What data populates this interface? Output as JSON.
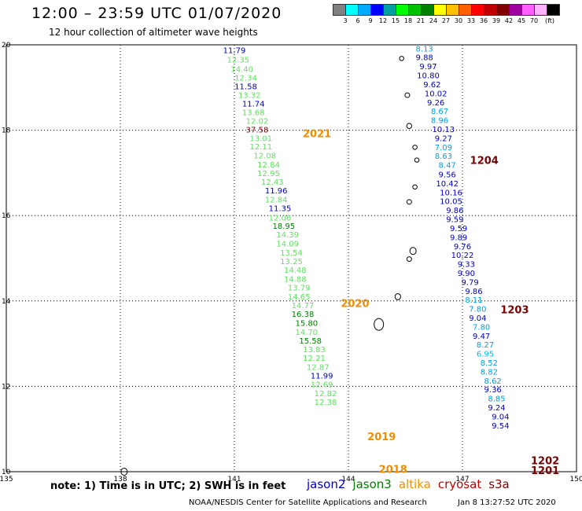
{
  "header": {
    "title": "12:00 – 23:59 UTC 01/07/2020",
    "subtitle": "12 hour collection of altimeter wave heights"
  },
  "colorbar": {
    "colors": [
      "#808080",
      "#00ffff",
      "#00aaff",
      "#0000ff",
      "#00a0a0",
      "#00ff00",
      "#00c000",
      "#008000",
      "#ffff00",
      "#ffc000",
      "#ff6000",
      "#ff0000",
      "#c00000",
      "#800000",
      "#a000a0",
      "#ff60ff",
      "#ffb0ff",
      "#000000"
    ],
    "labels": [
      "3",
      "6",
      "9",
      "12",
      "15",
      "18",
      "21",
      "24",
      "27",
      "30",
      "33",
      "36",
      "39",
      "42",
      "45",
      "70",
      "(ft)"
    ]
  },
  "map": {
    "lon_ticks": [
      "135",
      "138",
      "141",
      "144",
      "147",
      "150"
    ],
    "lat_ticks": [
      "20",
      "18",
      "16",
      "14",
      "12",
      "10"
    ],
    "year_labels": [
      {
        "text": "2021",
        "lon": 142.8,
        "lat": 17.93
      },
      {
        "text": "2020",
        "lon": 143.8,
        "lat": 13.95
      },
      {
        "text": "2019",
        "lon": 144.5,
        "lat": 10.83
      },
      {
        "text": "2018",
        "lon": 144.8,
        "lat": 10.06
      }
    ],
    "buoy_labels": [
      {
        "text": "1204",
        "lon": 147.2,
        "lat": 17.3
      },
      {
        "text": "1203",
        "lon": 148.0,
        "lat": 13.8
      },
      {
        "text": "1202",
        "lon": 148.8,
        "lat": 10.27
      },
      {
        "text": "1201",
        "lon": 148.8,
        "lat": 10.04
      }
    ]
  },
  "tracks": {
    "colors": {
      "jason2": "#0000c0",
      "jason3": "#008000",
      "altika": "#f09000",
      "cryosat": "#c00000",
      "s3a": "#800000",
      "lt15": "#60e060",
      "lt12": "#00a0e0",
      "lt9": "#00bbee"
    },
    "west": [
      {
        "v": "11.79",
        "lon": 141.0,
        "lat": 19.88,
        "c": "jason2"
      },
      {
        "v": "12.35",
        "lon": 141.1,
        "lat": 19.66,
        "c": "lt15"
      },
      {
        "v": "14.40",
        "lon": 141.2,
        "lat": 19.44,
        "c": "lt15"
      },
      {
        "v": "12.34",
        "lon": 141.3,
        "lat": 19.24,
        "c": "lt15"
      },
      {
        "v": "11.58",
        "lon": 141.3,
        "lat": 19.03,
        "c": "jason2"
      },
      {
        "v": "13.32",
        "lon": 141.4,
        "lat": 18.83,
        "c": "lt15"
      },
      {
        "v": "11.74",
        "lon": 141.5,
        "lat": 18.63,
        "c": "jason2"
      },
      {
        "v": "13.68",
        "lon": 141.5,
        "lat": 18.43,
        "c": "lt15"
      },
      {
        "v": "12.02",
        "lon": 141.6,
        "lat": 18.22,
        "c": "lt15"
      },
      {
        "v": "37.58",
        "lon": 141.6,
        "lat": 18.02,
        "c": "s3a"
      },
      {
        "v": "13.01",
        "lon": 141.7,
        "lat": 17.82,
        "c": "lt15"
      },
      {
        "v": "12.11",
        "lon": 141.7,
        "lat": 17.62,
        "c": "lt15"
      },
      {
        "v": "12.08",
        "lon": 141.8,
        "lat": 17.41,
        "c": "lt15"
      },
      {
        "v": "12.84",
        "lon": 141.9,
        "lat": 17.2,
        "c": "lt15"
      },
      {
        "v": "12.95",
        "lon": 141.9,
        "lat": 17.0,
        "c": "lt15"
      },
      {
        "v": "12.43",
        "lon": 142.0,
        "lat": 16.8,
        "c": "lt15"
      },
      {
        "v": "11.96",
        "lon": 142.1,
        "lat": 16.59,
        "c": "jason2"
      },
      {
        "v": "12.84",
        "lon": 142.1,
        "lat": 16.38,
        "c": "lt15"
      },
      {
        "v": "11.35",
        "lon": 142.2,
        "lat": 16.18,
        "c": "jason2"
      },
      {
        "v": "12.06",
        "lon": 142.2,
        "lat": 15.96,
        "c": "lt15"
      },
      {
        "v": "18.95",
        "lon": 142.3,
        "lat": 15.76,
        "c": "jason3"
      },
      {
        "v": "14.39",
        "lon": 142.4,
        "lat": 15.56,
        "c": "lt15"
      },
      {
        "v": "14.09",
        "lon": 142.4,
        "lat": 15.35,
        "c": "lt15"
      },
      {
        "v": "13.54",
        "lon": 142.5,
        "lat": 15.14,
        "c": "lt15"
      },
      {
        "v": "13.25",
        "lon": 142.5,
        "lat": 14.94,
        "c": "lt15"
      },
      {
        "v": "14.48",
        "lon": 142.6,
        "lat": 14.73,
        "c": "lt15"
      },
      {
        "v": "14.88",
        "lon": 142.6,
        "lat": 14.52,
        "c": "lt15"
      },
      {
        "v": "13.79",
        "lon": 142.7,
        "lat": 14.32,
        "c": "lt15"
      },
      {
        "v": "14.65",
        "lon": 142.7,
        "lat": 14.11,
        "c": "lt15"
      },
      {
        "v": "14.77",
        "lon": 142.8,
        "lat": 13.9,
        "c": "lt15"
      },
      {
        "v": "16.38",
        "lon": 142.8,
        "lat": 13.7,
        "c": "jason3"
      },
      {
        "v": "15.80",
        "lon": 142.9,
        "lat": 13.49,
        "c": "jason3"
      },
      {
        "v": "14.70",
        "lon": 142.9,
        "lat": 13.28,
        "c": "lt15"
      },
      {
        "v": "15.58",
        "lon": 143.0,
        "lat": 13.08,
        "c": "jason3"
      },
      {
        "v": "13.83",
        "lon": 143.1,
        "lat": 12.87,
        "c": "lt15"
      },
      {
        "v": "12.21",
        "lon": 143.1,
        "lat": 12.67,
        "c": "lt15"
      },
      {
        "v": "12.87",
        "lon": 143.2,
        "lat": 12.46,
        "c": "lt15"
      },
      {
        "v": "11.99",
        "lon": 143.3,
        "lat": 12.26,
        "c": "jason2"
      },
      {
        "v": "12.69",
        "lon": 143.3,
        "lat": 12.05,
        "c": "lt15"
      },
      {
        "v": "12.82",
        "lon": 143.4,
        "lat": 11.84,
        "c": "lt15"
      },
      {
        "v": "12.38",
        "lon": 143.4,
        "lat": 11.64,
        "c": "lt15"
      }
    ],
    "east": [
      {
        "v": "8.13",
        "lon": 146.0,
        "lat": 19.92,
        "c": "lt12"
      },
      {
        "v": "9.88",
        "lon": 146.0,
        "lat": 19.71,
        "c": "jason2"
      },
      {
        "v": "9.97",
        "lon": 146.1,
        "lat": 19.5,
        "c": "jason2"
      },
      {
        "v": "10.80",
        "lon": 146.1,
        "lat": 19.29,
        "c": "jason2"
      },
      {
        "v": "9.62",
        "lon": 146.2,
        "lat": 19.08,
        "c": "jason2"
      },
      {
        "v": "10.02",
        "lon": 146.3,
        "lat": 18.87,
        "c": "jason2"
      },
      {
        "v": "9.26",
        "lon": 146.3,
        "lat": 18.66,
        "c": "jason2"
      },
      {
        "v": "8.67",
        "lon": 146.4,
        "lat": 18.45,
        "c": "lt12"
      },
      {
        "v": "8.96",
        "lon": 146.4,
        "lat": 18.24,
        "c": "lt12"
      },
      {
        "v": "10.13",
        "lon": 146.5,
        "lat": 18.03,
        "c": "jason2"
      },
      {
        "v": "9.27",
        "lon": 146.5,
        "lat": 17.82,
        "c": "jason2"
      },
      {
        "v": "7.09",
        "lon": 146.5,
        "lat": 17.61,
        "c": "lt12"
      },
      {
        "v": "8.63",
        "lon": 146.5,
        "lat": 17.4,
        "c": "lt12"
      },
      {
        "v": "8.47",
        "lon": 146.6,
        "lat": 17.19,
        "c": "lt12"
      },
      {
        "v": "9.56",
        "lon": 146.6,
        "lat": 16.97,
        "c": "jason2"
      },
      {
        "v": "10.42",
        "lon": 146.6,
        "lat": 16.76,
        "c": "jason2"
      },
      {
        "v": "10.16",
        "lon": 146.7,
        "lat": 16.55,
        "c": "jason2"
      },
      {
        "v": "10.05",
        "lon": 146.7,
        "lat": 16.34,
        "c": "jason2"
      },
      {
        "v": "9.86",
        "lon": 146.8,
        "lat": 16.13,
        "c": "jason2"
      },
      {
        "v": "9.59",
        "lon": 146.8,
        "lat": 15.92,
        "c": "jason2"
      },
      {
        "v": "9.59",
        "lon": 146.9,
        "lat": 15.71,
        "c": "jason2"
      },
      {
        "v": "9.89",
        "lon": 146.9,
        "lat": 15.5,
        "c": "jason2"
      },
      {
        "v": "9.76",
        "lon": 147.0,
        "lat": 15.29,
        "c": "jason2"
      },
      {
        "v": "10.22",
        "lon": 147.0,
        "lat": 15.08,
        "c": "jason2"
      },
      {
        "v": "9.33",
        "lon": 147.1,
        "lat": 14.87,
        "c": "jason2"
      },
      {
        "v": "9.90",
        "lon": 147.1,
        "lat": 14.66,
        "c": "jason2"
      },
      {
        "v": "9.79",
        "lon": 147.2,
        "lat": 14.45,
        "c": "jason2"
      },
      {
        "v": "9.86",
        "lon": 147.3,
        "lat": 14.24,
        "c": "jason2"
      },
      {
        "v": "8.11",
        "lon": 147.3,
        "lat": 14.03,
        "c": "lt12"
      },
      {
        "v": "7.80",
        "lon": 147.4,
        "lat": 13.82,
        "c": "lt12"
      },
      {
        "v": "9.04",
        "lon": 147.4,
        "lat": 13.61,
        "c": "jason2"
      },
      {
        "v": "7.80",
        "lon": 147.5,
        "lat": 13.4,
        "c": "lt12"
      },
      {
        "v": "9.47",
        "lon": 147.5,
        "lat": 13.19,
        "c": "jason2"
      },
      {
        "v": "8.27",
        "lon": 147.6,
        "lat": 12.98,
        "c": "lt12"
      },
      {
        "v": "6.95",
        "lon": 147.6,
        "lat": 12.77,
        "c": "lt9"
      },
      {
        "v": "8.52",
        "lon": 147.7,
        "lat": 12.56,
        "c": "lt12"
      },
      {
        "v": "8.82",
        "lon": 147.7,
        "lat": 12.35,
        "c": "lt12"
      },
      {
        "v": "8.62",
        "lon": 147.8,
        "lat": 12.14,
        "c": "lt12"
      },
      {
        "v": "9.36",
        "lon": 147.8,
        "lat": 11.93,
        "c": "jason2"
      },
      {
        "v": "8.85",
        "lon": 147.9,
        "lat": 11.72,
        "c": "lt12"
      },
      {
        "v": "9.24",
        "lon": 147.9,
        "lat": 11.51,
        "c": "jason2"
      },
      {
        "v": "9.04",
        "lon": 148.0,
        "lat": 11.3,
        "c": "jason2"
      },
      {
        "v": "9.54",
        "lon": 148.0,
        "lat": 11.09,
        "c": "jason2"
      }
    ]
  },
  "footer": {
    "note": "note:  1) Time is in UTC;  2) SWH is in feet",
    "legend": [
      {
        "label": "jason2",
        "color": "#0000c0"
      },
      {
        "label": "jason3",
        "color": "#008000"
      },
      {
        "label": "altika",
        "color": "#f09000"
      },
      {
        "label": "cryosat",
        "color": "#c00000"
      },
      {
        "label": "s3a",
        "color": "#800000"
      }
    ],
    "credit": "NOAA/NESDIS Center for Satellite Applications and Research",
    "timestamp": "Jan  8 13:27:52 UTC 2020"
  }
}
